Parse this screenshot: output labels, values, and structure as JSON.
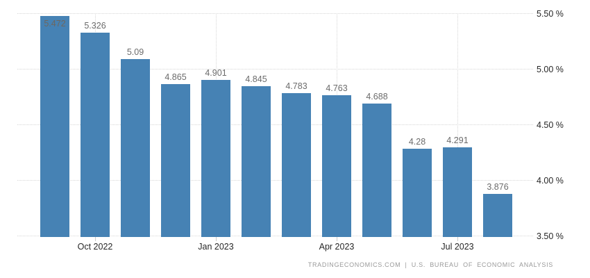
{
  "chart_data": {
    "type": "bar",
    "title": "",
    "xlabel": "",
    "ylabel": "",
    "values": [
      5.472,
      5.326,
      5.09,
      4.865,
      4.901,
      4.845,
      4.783,
      4.763,
      4.688,
      4.28,
      4.291,
      3.876
    ],
    "value_labels": [
      "5.472",
      "5.326",
      "5.09",
      "4.865",
      "4.901",
      "4.845",
      "4.783",
      "4.763",
      "4.688",
      "4.28",
      "4.291",
      "3.876"
    ],
    "x_ticks": [
      {
        "label": "Oct 2022",
        "bar_index": 1
      },
      {
        "label": "Jan 2023",
        "bar_index": 4
      },
      {
        "label": "Apr 2023",
        "bar_index": 7
      },
      {
        "label": "Jul 2023",
        "bar_index": 10
      }
    ],
    "y_ticks": [
      {
        "label": "5.50 %",
        "value": 5.5
      },
      {
        "label": "5.00 %",
        "value": 5.0
      },
      {
        "label": "4.50 %",
        "value": 4.5
      },
      {
        "label": "4.00 %",
        "value": 4.0
      },
      {
        "label": "3.50 %",
        "value": 3.5
      }
    ],
    "ylim": [
      3.5,
      5.5
    ],
    "grid": "dotted, horizontal at every y tick and vertical at every labeled x tick",
    "legend": "none",
    "y_axis_position": "right",
    "colors": {
      "bar": "#4682B4",
      "grid": "#d6d6d6",
      "value_label": "#6b6b6b",
      "axis_text": "#262626",
      "footer_text": "#9a9a9a",
      "background": "#ffffff"
    }
  },
  "footer": {
    "source": "TRADINGECONOMICS.COM | U.S. BUREAU OF ECONOMIC ANALYSIS"
  }
}
